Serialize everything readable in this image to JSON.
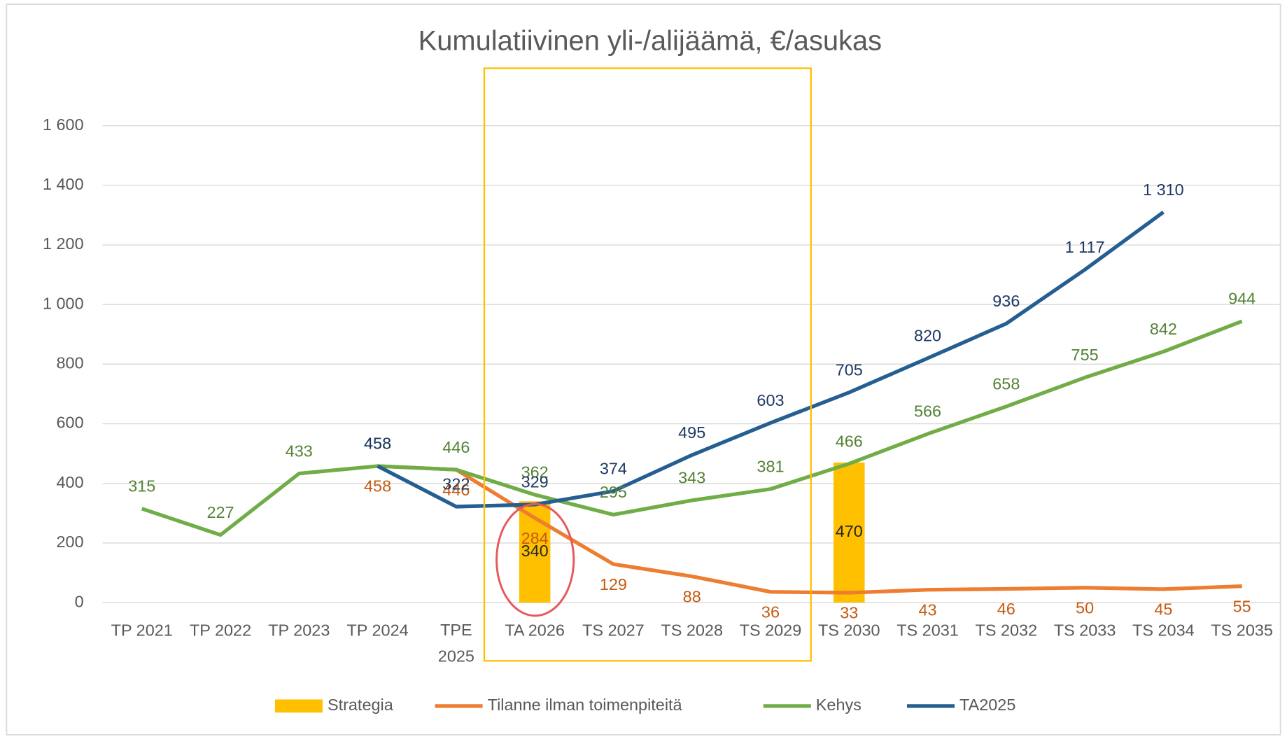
{
  "chart_data": {
    "type": "line",
    "title": "Kumulatiivinen yli-/alijäämä, €/asukas",
    "categories": [
      "TP 2021",
      "TP 2022",
      "TP 2023",
      "TP 2024",
      "TPE 2025",
      "TA 2026",
      "TS 2027",
      "TS 2028",
      "TS 2029",
      "TS 2030",
      "TS 2031",
      "TS 2032",
      "TS 2033",
      "TS 2034",
      "TS 2035"
    ],
    "series": [
      {
        "name": "Strategia",
        "type": "bar",
        "color": "#ffc000",
        "values": [
          null,
          null,
          null,
          null,
          null,
          340,
          null,
          null,
          null,
          470,
          null,
          null,
          null,
          null,
          null
        ]
      },
      {
        "name": "Tilanne ilman toimenpiteitä",
        "type": "line",
        "color": "#ed7d31",
        "label_color": "#c55a11",
        "values": [
          null,
          null,
          null,
          458,
          446,
          284,
          129,
          88,
          36,
          33,
          43,
          46,
          50,
          45,
          55
        ]
      },
      {
        "name": "Kehys",
        "type": "line",
        "color": "#70ad47",
        "label_color": "#548235",
        "values": [
          315,
          227,
          433,
          458,
          446,
          362,
          295,
          343,
          381,
          466,
          566,
          658,
          755,
          842,
          944
        ]
      },
      {
        "name": "TA2025",
        "type": "line",
        "color": "#255e91",
        "label_color": "#1f3864",
        "values": [
          null,
          null,
          null,
          458,
          322,
          329,
          374,
          495,
          603,
          705,
          820,
          936,
          1117,
          1310,
          null
        ],
        "value_labels": [
          null,
          null,
          null,
          "458",
          "322",
          "329",
          "374",
          "495",
          "603",
          "705",
          "820",
          "936",
          "1 117",
          "1 310",
          null
        ]
      }
    ],
    "ylim": [
      0,
      1600
    ],
    "yticks": [
      0,
      200,
      400,
      600,
      800,
      {
        "value": 1000,
        "label": "1 000"
      },
      {
        "value": 1200,
        "label": "1 200"
      },
      {
        "value": 1400,
        "label": "1 400"
      },
      {
        "value": 1600,
        "label": "1 600"
      }
    ],
    "grid": true,
    "legend": "bottom"
  }
}
